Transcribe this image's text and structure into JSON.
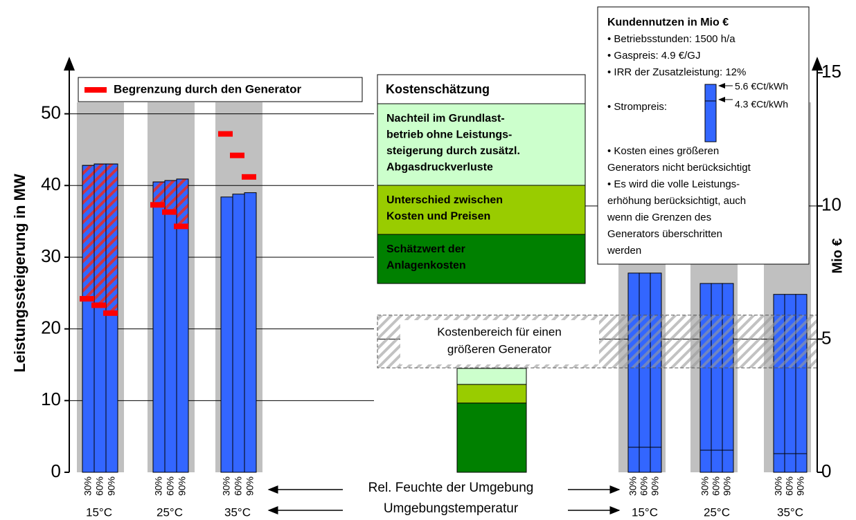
{
  "chart_data": [
    {
      "type": "grouped-bar",
      "ylabel": "Leistungssteigerung in MW",
      "ylim": [
        0,
        57
      ],
      "yticks": [
        0,
        10,
        20,
        30,
        40,
        50
      ],
      "grid": true,
      "color": "#3366ff",
      "categories": [
        "15°C",
        "25°C",
        "35°C"
      ],
      "subcategories": [
        "30%",
        "60%",
        "90%"
      ],
      "values": [
        [
          42.8,
          43,
          43
        ],
        [
          40.5,
          40.7,
          40.9
        ],
        [
          38.4,
          38.8,
          39
        ]
      ],
      "limit": {
        "name": "Begrenzung durch den Generator",
        "color": "#ff0000",
        "values": [
          [
            24.2,
            23.3,
            22.2
          ],
          [
            37.3,
            36.3,
            34.3
          ],
          [
            47.2,
            44.2,
            41.2
          ]
        ]
      }
    },
    {
      "type": "cost-bar",
      "ylabel": "Mio €",
      "y2lim": [
        0,
        15.5
      ],
      "y2ticks": [
        0,
        5,
        10,
        15
      ],
      "grid": true,
      "color": "#3366ff",
      "categories": [
        "15°C",
        "25°C",
        "35°C"
      ],
      "subcategories": [
        "30%",
        "60%",
        "90%"
      ],
      "values": [
        7.48,
        7.09,
        6.68
      ],
      "lower_values": [
        0.94,
        0.83,
        0.7
      ],
      "legend_title": "Kostenschätzung",
      "segments": [
        {
          "name": [
            "Schätzwert der",
            "Anlagenkosten"
          ],
          "color": "#008000",
          "value": 2.6
        },
        {
          "name": [
            "Unterschied zwischen",
            "Kosten und Preisen"
          ],
          "color": "#99cc00",
          "value": 0.7
        },
        {
          "name": [
            "Nachteil im Grundlast-",
            "betrieb ohne Leistungs-",
            "steigerung durch zusätzl.",
            "Abgasdruckverluste"
          ],
          "color": "#ccffcc",
          "value": 0.6
        }
      ],
      "range": {
        "label": [
          "Kostenbereich für einen",
          "größeren Generator"
        ],
        "values": [
          3.92,
          5.9
        ]
      }
    }
  ],
  "axis_notes": {
    "humidity": "Rel. Feuchte der Umgebung",
    "temperature": "Umgebungstemperatur"
  },
  "info_box": {
    "title": "Kundennutzen in Mio €",
    "lines": [
      "• Betriebsstunden: 1500 h/a",
      "• Gaspreis: 4.9 €/GJ",
      "• IRR der Zusatzleistung: 12%"
    ],
    "price_label": "• Strompreis:",
    "price_high": "5.6 €Ct/kWh",
    "price_low": "4.3 €Ct/kWh",
    "notes": [
      "• Kosten eines größeren",
      "Generators nicht berücksichtigt",
      "• Es wird die volle Leistungs-",
      "erhöhung berücksichtigt, auch",
      "wenn die Grenzen des",
      "Generators überschritten",
      "werden"
    ]
  }
}
